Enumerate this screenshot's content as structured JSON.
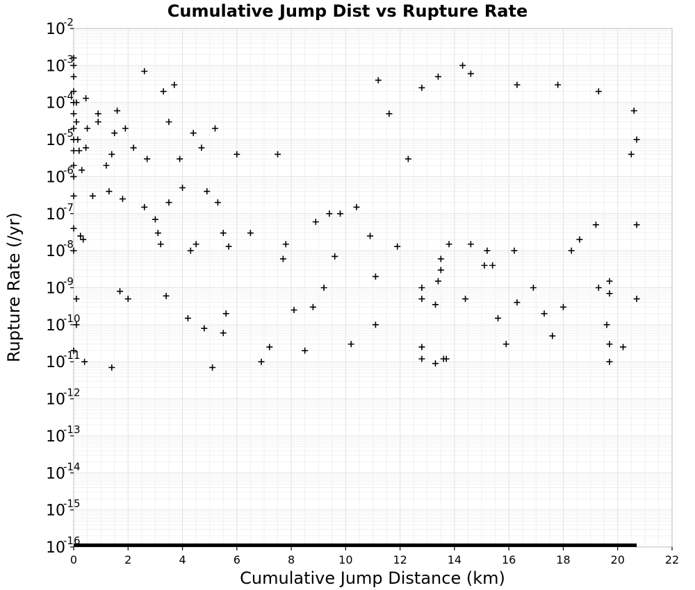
{
  "chart_data": {
    "type": "scatter",
    "title": "Cumulative Jump Dist vs Rupture Rate",
    "xlabel": "Cumulative Jump Distance (km)",
    "ylabel": "Rupture Rate (/yr)",
    "xlim": [
      0,
      22
    ],
    "ylim": [
      1e-16,
      0.01
    ],
    "yscale": "log",
    "x_ticks": [
      "0",
      "2",
      "4",
      "6",
      "8",
      "10",
      "12",
      "14",
      "16",
      "18",
      "20",
      "22"
    ],
    "y_ticks": [
      {
        "base": "10",
        "exp": "-16"
      },
      {
        "base": "10",
        "exp": "-15"
      },
      {
        "base": "10",
        "exp": "-14"
      },
      {
        "base": "10",
        "exp": "-13"
      },
      {
        "base": "10",
        "exp": "-12"
      },
      {
        "base": "10",
        "exp": "-11"
      },
      {
        "base": "10",
        "exp": "-10"
      },
      {
        "base": "10",
        "exp": "-9"
      },
      {
        "base": "10",
        "exp": "-8"
      },
      {
        "base": "10",
        "exp": "-7"
      },
      {
        "base": "10",
        "exp": "-6"
      },
      {
        "base": "10",
        "exp": "-5"
      },
      {
        "base": "10",
        "exp": "-4"
      },
      {
        "base": "10",
        "exp": "-3"
      },
      {
        "base": "10",
        "exp": "-2"
      }
    ],
    "grid": true,
    "marker": "+",
    "marker_color": "#000000",
    "series": [
      {
        "points": [
          [
            0.0,
            0.0016
          ],
          [
            0.0,
            0.001
          ],
          [
            0.0,
            0.0005
          ],
          [
            0.0,
            0.0002
          ],
          [
            0.0,
            0.0001
          ],
          [
            0.0,
            5e-05
          ],
          [
            0.0,
            2e-05
          ],
          [
            0.0,
            1e-05
          ],
          [
            0.0,
            5e-06
          ],
          [
            0.0,
            2e-06
          ],
          [
            0.0,
            1e-06
          ],
          [
            0.0,
            3e-07
          ],
          [
            0.0,
            4e-08
          ],
          [
            0.0,
            1e-08
          ],
          [
            0.0,
            2e-11
          ],
          [
            0.1,
            0.0001
          ],
          [
            0.1,
            3e-05
          ],
          [
            0.15,
            1e-05
          ],
          [
            0.2,
            5e-06
          ],
          [
            0.25,
            2.5e-08
          ],
          [
            0.1,
            5e-10
          ],
          [
            0.1,
            1e-10
          ],
          [
            0.35,
            2e-08
          ],
          [
            0.4,
            1e-11
          ],
          [
            0.3,
            1.5e-06
          ],
          [
            0.45,
            6e-06
          ],
          [
            0.5,
            2e-05
          ],
          [
            0.45,
            0.00013
          ],
          [
            0.7,
            3e-07
          ],
          [
            0.9,
            5e-05
          ],
          [
            0.9,
            3e-05
          ],
          [
            1.2,
            2e-06
          ],
          [
            1.3,
            4e-07
          ],
          [
            1.4,
            7e-12
          ],
          [
            1.4,
            4e-06
          ],
          [
            1.5,
            1.5e-05
          ],
          [
            1.6,
            6e-05
          ],
          [
            1.7,
            8e-10
          ],
          [
            1.8,
            2.5e-07
          ],
          [
            1.9,
            2e-05
          ],
          [
            2.0,
            5e-10
          ],
          [
            2.2,
            6e-06
          ],
          [
            2.6,
            0.0007
          ],
          [
            2.6,
            1.5e-07
          ],
          [
            2.7,
            3e-06
          ],
          [
            3.0,
            7e-08
          ],
          [
            3.1,
            3e-08
          ],
          [
            3.2,
            1.5e-08
          ],
          [
            3.3,
            0.0002
          ],
          [
            3.5,
            3e-05
          ],
          [
            3.4,
            6e-10
          ],
          [
            3.5,
            2e-07
          ],
          [
            3.7,
            0.0003
          ],
          [
            3.9,
            3e-06
          ],
          [
            4.0,
            5e-07
          ],
          [
            4.2,
            1.5e-10
          ],
          [
            4.3,
            1e-08
          ],
          [
            4.4,
            1.5e-05
          ],
          [
            4.5,
            1.5e-08
          ],
          [
            4.7,
            6e-06
          ],
          [
            4.8,
            8e-11
          ],
          [
            4.9,
            4e-07
          ],
          [
            5.1,
            7e-12
          ],
          [
            5.2,
            2e-05
          ],
          [
            5.3,
            2e-07
          ],
          [
            5.5,
            6e-11
          ],
          [
            5.5,
            3e-08
          ],
          [
            5.6,
            2e-10
          ],
          [
            5.7,
            1.3e-08
          ],
          [
            6.0,
            4e-06
          ],
          [
            6.5,
            3e-08
          ],
          [
            6.9,
            1e-11
          ],
          [
            7.2,
            2.5e-11
          ],
          [
            7.5,
            4e-06
          ],
          [
            7.7,
            6e-09
          ],
          [
            7.8,
            1.5e-08
          ],
          [
            8.1,
            2.5e-10
          ],
          [
            8.5,
            2e-11
          ],
          [
            8.8,
            3e-10
          ],
          [
            8.9,
            6e-08
          ],
          [
            9.2,
            1e-09
          ],
          [
            9.4,
            1e-07
          ],
          [
            9.6,
            7e-09
          ],
          [
            9.8,
            1e-07
          ],
          [
            10.2,
            3e-11
          ],
          [
            10.4,
            1.5e-07
          ],
          [
            10.9,
            2.5e-08
          ],
          [
            11.1,
            2e-09
          ],
          [
            11.1,
            1e-10
          ],
          [
            11.2,
            0.0004
          ],
          [
            11.6,
            5e-05
          ],
          [
            11.9,
            1.3e-08
          ],
          [
            12.3,
            3e-06
          ],
          [
            12.8,
            1e-09
          ],
          [
            12.8,
            5e-10
          ],
          [
            12.8,
            2.5e-11
          ],
          [
            12.8,
            1.2e-11
          ],
          [
            12.8,
            0.00025
          ],
          [
            13.4,
            1.5e-09
          ],
          [
            13.3,
            9e-12
          ],
          [
            13.3,
            3.5e-10
          ],
          [
            13.4,
            0.0005
          ],
          [
            13.5,
            3e-09
          ],
          [
            13.5,
            6e-09
          ],
          [
            13.6,
            1.2e-11
          ],
          [
            13.7,
            1.2e-11
          ],
          [
            13.8,
            1.5e-08
          ],
          [
            14.3,
            0.001
          ],
          [
            14.4,
            5e-10
          ],
          [
            14.6,
            0.0006
          ],
          [
            14.6,
            1.5e-08
          ],
          [
            15.1,
            4e-09
          ],
          [
            15.2,
            1e-08
          ],
          [
            15.4,
            4e-09
          ],
          [
            15.6,
            1.5e-10
          ],
          [
            15.9,
            3e-11
          ],
          [
            16.2,
            1e-08
          ],
          [
            16.3,
            4e-10
          ],
          [
            16.3,
            0.0003
          ],
          [
            16.9,
            1e-09
          ],
          [
            17.3,
            2e-10
          ],
          [
            17.6,
            5e-11
          ],
          [
            17.8,
            0.0003
          ],
          [
            18.0,
            3e-10
          ],
          [
            18.3,
            1e-08
          ],
          [
            18.6,
            2e-08
          ],
          [
            19.2,
            5e-08
          ],
          [
            19.3,
            0.0002
          ],
          [
            19.3,
            1e-09
          ],
          [
            19.6,
            1e-10
          ],
          [
            19.7,
            1e-11
          ],
          [
            19.7,
            3e-11
          ],
          [
            19.7,
            1.5e-09
          ],
          [
            19.7,
            7e-10
          ],
          [
            20.2,
            2.5e-11
          ],
          [
            20.7,
            5e-10
          ],
          [
            20.7,
            5e-08
          ],
          [
            20.6,
            6e-05
          ],
          [
            20.7,
            1e-05
          ],
          [
            20.5,
            4e-06
          ]
        ]
      },
      {
        "name": "",
        "x_range_at_floor": [
          0,
          20.7
        ],
        "y": 1e-16
      }
    ]
  }
}
